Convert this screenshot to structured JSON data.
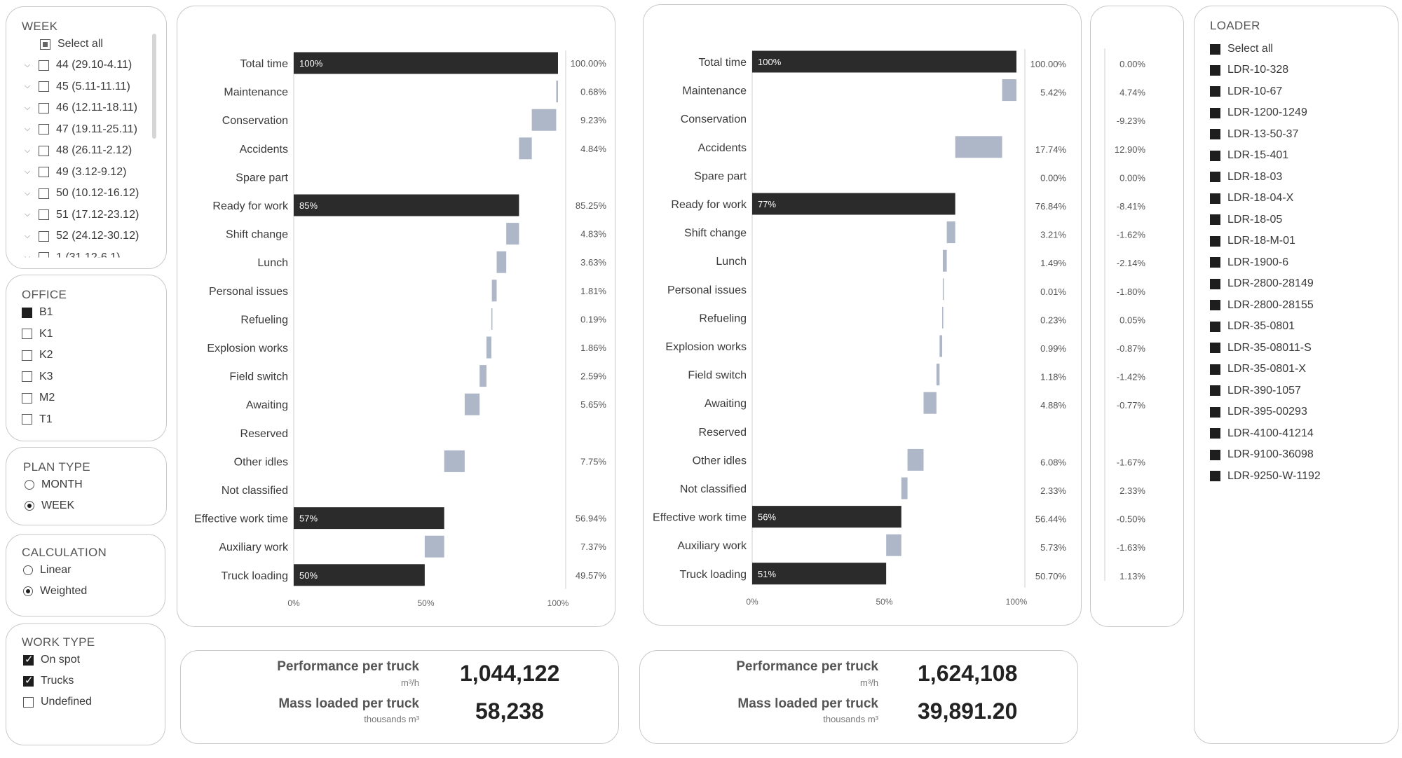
{
  "week": {
    "title": "WEEK",
    "select_all": "Select all",
    "items": [
      "44 (29.10-4.11)",
      "45 (5.11-11.11)",
      "46 (12.11-18.11)",
      "47 (19.11-25.11)",
      "48 (26.11-2.12)",
      "49 (3.12-9.12)",
      "50 (10.12-16.12)",
      "51 (17.12-23.12)",
      "52 (24.12-30.12)",
      "1 (31.12-6.1)"
    ]
  },
  "office": {
    "title": "OFFICE",
    "items": [
      {
        "label": "B1",
        "checked": true
      },
      {
        "label": "K1",
        "checked": false
      },
      {
        "label": "K2",
        "checked": false
      },
      {
        "label": "K3",
        "checked": false
      },
      {
        "label": "M2",
        "checked": false
      },
      {
        "label": "T1",
        "checked": false
      }
    ]
  },
  "plan_type": {
    "title": "PLAN TYPE",
    "options": [
      {
        "label": "MONTH",
        "selected": false
      },
      {
        "label": "WEEK",
        "selected": true
      }
    ]
  },
  "calculation": {
    "title": "CALCULATION",
    "options": [
      {
        "label": "Linear",
        "selected": false
      },
      {
        "label": "Weighted",
        "selected": true
      }
    ]
  },
  "work_type": {
    "title": "WORK TYPE",
    "items": [
      {
        "label": "On spot",
        "checked": true
      },
      {
        "label": "Trucks",
        "checked": true
      },
      {
        "label": "Undefined",
        "checked": false
      }
    ]
  },
  "loader": {
    "title": "LOADER",
    "select_all": "Select all",
    "items": [
      "LDR-10-328",
      "LDR-10-67",
      "LDR-1200-1249",
      "LDR-13-50-37",
      "LDR-15-401",
      "LDR-18-03",
      "LDR-18-04-X",
      "LDR-18-05",
      "LDR-18-M-01",
      "LDR-1900-6",
      "LDR-2800-28149",
      "LDR-2800-28155",
      "LDR-35-0801",
      "LDR-35-08011-S",
      "LDR-35-0801-X",
      "LDR-390-1057",
      "LDR-395-00293",
      "LDR-4100-41214",
      "LDR-9100-36098",
      "LDR-9250-W-1192"
    ]
  },
  "colors": {
    "total_bar": "#2b2b2b",
    "delta_bar": "#aeb7c8",
    "panel_border": "#c9c9c9"
  },
  "chart_data": [
    {
      "type": "bar",
      "subtype": "waterfall",
      "categories": [
        "Total time",
        "Maintenance",
        "Conservation",
        "Accidents",
        "Spare part",
        "Ready for work",
        "Shift change",
        "Lunch",
        "Personal issues",
        "Refueling",
        "Explosion works",
        "Field switch",
        "Awaiting",
        "Reserved",
        "Other idles",
        "Not classified",
        "Effective work time",
        "Auxiliary work",
        "Truck loading"
      ],
      "kind": [
        "total",
        "delta",
        "delta",
        "delta",
        "delta",
        "total",
        "delta",
        "delta",
        "delta",
        "delta",
        "delta",
        "delta",
        "delta",
        "delta",
        "delta",
        "delta",
        "total",
        "delta",
        "total"
      ],
      "values": [
        100,
        0.68,
        9.23,
        4.84,
        0,
        85.25,
        4.83,
        3.63,
        1.81,
        0.19,
        1.86,
        2.59,
        5.65,
        0,
        7.75,
        0,
        56.94,
        7.37,
        49.57
      ],
      "bar_labels": [
        "100%",
        "",
        "",
        "",
        "",
        "85%",
        "",
        "",
        "",
        "",
        "",
        "",
        "",
        "",
        "",
        "",
        "57%",
        "",
        "50%"
      ],
      "value_labels": [
        "100.00%",
        "0.68%",
        "9.23%",
        "4.84%",
        "",
        "85.25%",
        "4.83%",
        "3.63%",
        "1.81%",
        "0.19%",
        "1.86%",
        "2.59%",
        "5.65%",
        "",
        "7.75%",
        "",
        "56.94%",
        "7.37%",
        "49.57%"
      ],
      "x_ticks": [
        "0%",
        "50%",
        "100%"
      ],
      "xlim": [
        0,
        100
      ]
    },
    {
      "type": "bar",
      "subtype": "waterfall",
      "categories": [
        "Total time",
        "Maintenance",
        "Conservation",
        "Accidents",
        "Spare part",
        "Ready for work",
        "Shift change",
        "Lunch",
        "Personal issues",
        "Refueling",
        "Explosion works",
        "Field switch",
        "Awaiting",
        "Reserved",
        "Other idles",
        "Not classified",
        "Effective work time",
        "Auxiliary work",
        "Truck loading"
      ],
      "kind": [
        "total",
        "delta",
        "delta",
        "delta",
        "delta",
        "total",
        "delta",
        "delta",
        "delta",
        "delta",
        "delta",
        "delta",
        "delta",
        "delta",
        "delta",
        "delta",
        "total",
        "delta",
        "total"
      ],
      "values": [
        100,
        5.42,
        0,
        17.74,
        0,
        76.84,
        3.21,
        1.49,
        0.01,
        0.23,
        0.99,
        1.18,
        4.88,
        0,
        6.08,
        2.33,
        56.44,
        5.73,
        50.7
      ],
      "bar_labels": [
        "100%",
        "",
        "",
        "",
        "",
        "77%",
        "",
        "",
        "",
        "",
        "",
        "",
        "",
        "",
        "",
        "",
        "56%",
        "",
        "51%"
      ],
      "value_labels": [
        "100.00%",
        "5.42%",
        "",
        "17.74%",
        "0.00%",
        "76.84%",
        "3.21%",
        "1.49%",
        "0.01%",
        "0.23%",
        "0.99%",
        "1.18%",
        "4.88%",
        "",
        "6.08%",
        "2.33%",
        "56.44%",
        "5.73%",
        "50.70%"
      ],
      "diff_labels": [
        "0.00%",
        "4.74%",
        "-9.23%",
        "12.90%",
        "0.00%",
        "-8.41%",
        "-1.62%",
        "-2.14%",
        "-1.80%",
        "0.05%",
        "-0.87%",
        "-1.42%",
        "-0.77%",
        "",
        "-1.67%",
        "2.33%",
        "-0.50%",
        "-1.63%",
        "1.13%"
      ],
      "x_ticks": [
        "0%",
        "50%",
        "100%"
      ],
      "xlim": [
        0,
        100
      ]
    }
  ],
  "kpi_left": {
    "perf_label": "Performance per truck",
    "perf_unit": "m³/h",
    "perf_value": "1,044,122",
    "mass_label": "Mass loaded per truck",
    "mass_unit": "thousands m³",
    "mass_value": "58,238"
  },
  "kpi_right": {
    "perf_label": "Performance per truck",
    "perf_unit": "m³/h",
    "perf_value": "1,624,108",
    "mass_label": "Mass loaded per truck",
    "mass_unit": "thousands  m³",
    "mass_value": "39,891.20"
  }
}
